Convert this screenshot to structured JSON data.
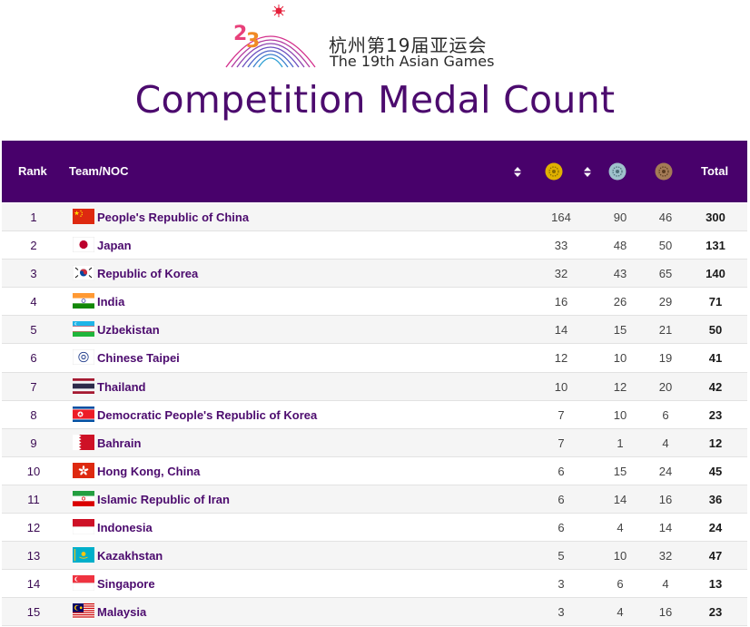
{
  "logo": {
    "cn": "杭州第19届亚运会",
    "en": "The 19th Asian Games"
  },
  "page_title": "Competition Medal Count",
  "table": {
    "header": {
      "rank": "Rank",
      "team": "Team/NOC",
      "total": "Total"
    },
    "medal_colors": {
      "gold": "#e0b100",
      "silver": "#9fc2cc",
      "bronze": "#a47b56"
    },
    "header_bg": "#48016b",
    "rows": [
      {
        "rank": "1",
        "team": "People's Republic of China",
        "flag": "flag-china-icon",
        "gold": "164",
        "silver": "90",
        "bronze": "46",
        "total": "300"
      },
      {
        "rank": "2",
        "team": "Japan",
        "flag": "flag-japan-icon",
        "gold": "33",
        "silver": "48",
        "bronze": "50",
        "total": "131"
      },
      {
        "rank": "3",
        "team": "Republic of Korea",
        "flag": "flag-korea-icon",
        "gold": "32",
        "silver": "43",
        "bronze": "65",
        "total": "140"
      },
      {
        "rank": "4",
        "team": "India",
        "flag": "flag-india-icon",
        "gold": "16",
        "silver": "26",
        "bronze": "29",
        "total": "71"
      },
      {
        "rank": "5",
        "team": "Uzbekistan",
        "flag": "flag-uzbekistan-icon",
        "gold": "14",
        "silver": "15",
        "bronze": "21",
        "total": "50"
      },
      {
        "rank": "6",
        "team": "Chinese Taipei",
        "flag": "flag-chinese-taipei-icon",
        "gold": "12",
        "silver": "10",
        "bronze": "19",
        "total": "41"
      },
      {
        "rank": "7",
        "team": "Thailand",
        "flag": "flag-thailand-icon",
        "gold": "10",
        "silver": "12",
        "bronze": "20",
        "total": "42"
      },
      {
        "rank": "8",
        "team": "Democratic People's Republic of Korea",
        "flag": "flag-dpr-korea-icon",
        "gold": "7",
        "silver": "10",
        "bronze": "6",
        "total": "23"
      },
      {
        "rank": "9",
        "team": "Bahrain",
        "flag": "flag-bahrain-icon",
        "gold": "7",
        "silver": "1",
        "bronze": "4",
        "total": "12"
      },
      {
        "rank": "10",
        "team": "Hong Kong, China",
        "flag": "flag-hong-kong-icon",
        "gold": "6",
        "silver": "15",
        "bronze": "24",
        "total": "45"
      },
      {
        "rank": "11",
        "team": "Islamic Republic of Iran",
        "flag": "flag-iran-icon",
        "gold": "6",
        "silver": "14",
        "bronze": "16",
        "total": "36"
      },
      {
        "rank": "12",
        "team": "Indonesia",
        "flag": "flag-indonesia-icon",
        "gold": "6",
        "silver": "4",
        "bronze": "14",
        "total": "24"
      },
      {
        "rank": "13",
        "team": "Kazakhstan",
        "flag": "flag-kazakhstan-icon",
        "gold": "5",
        "silver": "10",
        "bronze": "32",
        "total": "47"
      },
      {
        "rank": "14",
        "team": "Singapore",
        "flag": "flag-singapore-icon",
        "gold": "3",
        "silver": "6",
        "bronze": "4",
        "total": "13"
      },
      {
        "rank": "15",
        "team": "Malaysia",
        "flag": "flag-malaysia-icon",
        "gold": "3",
        "silver": "4",
        "bronze": "16",
        "total": "23"
      }
    ]
  }
}
